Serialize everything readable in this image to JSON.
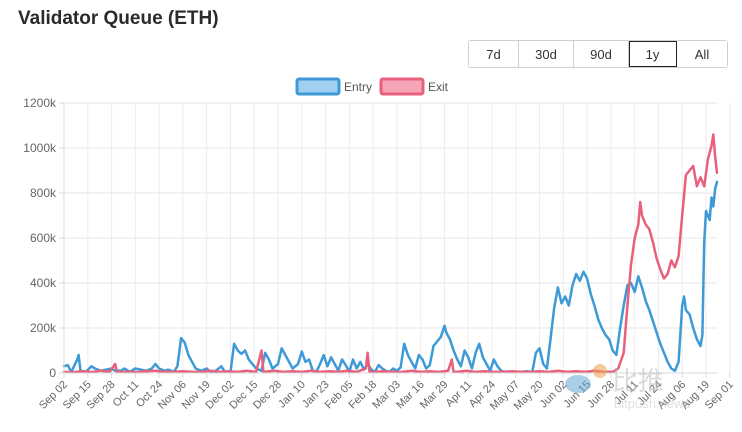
{
  "page": {
    "title": "Validator Queue (ETH)"
  },
  "ranges": [
    {
      "label": "7d",
      "active": false
    },
    {
      "label": "30d",
      "active": false
    },
    {
      "label": "90d",
      "active": false
    },
    {
      "label": "1y",
      "active": true
    },
    {
      "label": "All",
      "active": false
    }
  ],
  "watermark": {
    "text": "比推",
    "subtext": "bitpush.news"
  },
  "chart_data": {
    "type": "line",
    "title": "Validator Queue (ETH)",
    "legend_position": "top-center",
    "grid": true,
    "ylim": [
      0,
      1200000
    ],
    "y_ticks": [
      0,
      200000,
      400000,
      600000,
      800000,
      1000000,
      1200000
    ],
    "y_tick_labels": [
      "0",
      "200k",
      "400k",
      "600k",
      "800k",
      "1000k",
      "1200k"
    ],
    "x_tick_labels": [
      "Sep 02",
      "Sep 15",
      "Sep 28",
      "Oct 11",
      "Oct 24",
      "Nov 06",
      "Nov 19",
      "Dec 02",
      "Dec 15",
      "Dec 28",
      "Jan 10",
      "Jan 23",
      "Feb 05",
      "Feb 18",
      "Mar 03",
      "Mar 16",
      "Mar 29",
      "Apr 11",
      "Apr 24",
      "May 07",
      "May 20",
      "Jun 02",
      "Jun 15",
      "Jun 28",
      "Jul 11",
      "Jul 24",
      "Aug 06",
      "Aug 19",
      "Sep 01"
    ],
    "series": [
      {
        "name": "Entry",
        "color": "#3d9ad6",
        "fill": "#9fd0f2",
        "points": [
          [
            0,
            30000
          ],
          [
            2,
            35000
          ],
          [
            4,
            5000
          ],
          [
            7,
            55000
          ],
          [
            8,
            80000
          ],
          [
            9,
            10000
          ],
          [
            12,
            5000
          ],
          [
            15,
            30000
          ],
          [
            17,
            20000
          ],
          [
            20,
            10000
          ],
          [
            23,
            15000
          ],
          [
            26,
            20000
          ],
          [
            28,
            10000
          ],
          [
            31,
            10000
          ],
          [
            33,
            20000
          ],
          [
            36,
            5000
          ],
          [
            39,
            20000
          ],
          [
            42,
            15000
          ],
          [
            45,
            10000
          ],
          [
            48,
            20000
          ],
          [
            50,
            40000
          ],
          [
            52,
            20000
          ],
          [
            55,
            10000
          ],
          [
            57,
            15000
          ],
          [
            60,
            5000
          ],
          [
            62,
            30000
          ],
          [
            64,
            155000
          ],
          [
            66,
            135000
          ],
          [
            68,
            80000
          ],
          [
            70,
            50000
          ],
          [
            72,
            20000
          ],
          [
            75,
            10000
          ],
          [
            78,
            20000
          ],
          [
            80,
            5000
          ],
          [
            83,
            10000
          ],
          [
            86,
            30000
          ],
          [
            88,
            5000
          ],
          [
            91,
            5000
          ],
          [
            93,
            130000
          ],
          [
            95,
            100000
          ],
          [
            97,
            85000
          ],
          [
            99,
            100000
          ],
          [
            101,
            60000
          ],
          [
            103,
            40000
          ],
          [
            105,
            20000
          ],
          [
            108,
            10000
          ],
          [
            110,
            90000
          ],
          [
            112,
            60000
          ],
          [
            114,
            20000
          ],
          [
            117,
            40000
          ],
          [
            119,
            110000
          ],
          [
            121,
            80000
          ],
          [
            123,
            50000
          ],
          [
            125,
            20000
          ],
          [
            128,
            40000
          ],
          [
            130,
            95000
          ],
          [
            132,
            50000
          ],
          [
            134,
            60000
          ],
          [
            136,
            10000
          ],
          [
            138,
            5000
          ],
          [
            140,
            40000
          ],
          [
            142,
            80000
          ],
          [
            144,
            30000
          ],
          [
            146,
            70000
          ],
          [
            148,
            40000
          ],
          [
            150,
            10000
          ],
          [
            152,
            60000
          ],
          [
            154,
            35000
          ],
          [
            156,
            5000
          ],
          [
            158,
            60000
          ],
          [
            160,
            20000
          ],
          [
            162,
            50000
          ],
          [
            164,
            15000
          ],
          [
            166,
            40000
          ],
          [
            168,
            15000
          ],
          [
            170,
            5000
          ],
          [
            172,
            35000
          ],
          [
            174,
            20000
          ],
          [
            176,
            10000
          ],
          [
            178,
            5000
          ],
          [
            180,
            20000
          ],
          [
            182,
            10000
          ],
          [
            184,
            25000
          ],
          [
            186,
            130000
          ],
          [
            188,
            80000
          ],
          [
            190,
            50000
          ],
          [
            192,
            20000
          ],
          [
            194,
            80000
          ],
          [
            196,
            60000
          ],
          [
            198,
            20000
          ],
          [
            200,
            35000
          ],
          [
            202,
            120000
          ],
          [
            204,
            140000
          ],
          [
            206,
            160000
          ],
          [
            208,
            210000
          ],
          [
            209,
            180000
          ],
          [
            211,
            150000
          ],
          [
            213,
            100000
          ],
          [
            215,
            60000
          ],
          [
            217,
            30000
          ],
          [
            219,
            100000
          ],
          [
            221,
            70000
          ],
          [
            223,
            20000
          ],
          [
            225,
            90000
          ],
          [
            227,
            130000
          ],
          [
            229,
            70000
          ],
          [
            231,
            40000
          ],
          [
            233,
            10000
          ],
          [
            235,
            60000
          ],
          [
            237,
            30000
          ],
          [
            239,
            10000
          ],
          [
            241,
            5000
          ],
          [
            244,
            5000
          ],
          [
            247,
            5000
          ],
          [
            250,
            5000
          ],
          [
            253,
            8000
          ],
          [
            256,
            5000
          ],
          [
            258,
            90000
          ],
          [
            260,
            110000
          ],
          [
            262,
            40000
          ],
          [
            264,
            20000
          ],
          [
            266,
            150000
          ],
          [
            268,
            290000
          ],
          [
            270,
            380000
          ],
          [
            272,
            310000
          ],
          [
            274,
            340000
          ],
          [
            276,
            300000
          ],
          [
            278,
            390000
          ],
          [
            280,
            440000
          ],
          [
            282,
            410000
          ],
          [
            284,
            450000
          ],
          [
            286,
            420000
          ],
          [
            288,
            350000
          ],
          [
            290,
            300000
          ],
          [
            292,
            240000
          ],
          [
            294,
            200000
          ],
          [
            296,
            170000
          ],
          [
            298,
            150000
          ],
          [
            300,
            100000
          ],
          [
            302,
            80000
          ],
          [
            304,
            200000
          ],
          [
            306,
            300000
          ],
          [
            308,
            390000
          ],
          [
            310,
            400000
          ],
          [
            312,
            360000
          ],
          [
            314,
            430000
          ],
          [
            316,
            380000
          ],
          [
            318,
            320000
          ],
          [
            320,
            280000
          ],
          [
            322,
            230000
          ],
          [
            324,
            180000
          ],
          [
            326,
            130000
          ],
          [
            328,
            90000
          ],
          [
            330,
            50000
          ],
          [
            332,
            20000
          ],
          [
            334,
            10000
          ],
          [
            336,
            50000
          ],
          [
            338,
            300000
          ],
          [
            339,
            340000
          ],
          [
            340,
            280000
          ],
          [
            342,
            260000
          ],
          [
            344,
            200000
          ],
          [
            346,
            150000
          ],
          [
            348,
            120000
          ],
          [
            349,
            170000
          ],
          [
            350,
            580000
          ],
          [
            351,
            720000
          ],
          [
            352,
            700000
          ],
          [
            353,
            680000
          ],
          [
            354,
            780000
          ],
          [
            355,
            740000
          ],
          [
            356,
            820000
          ],
          [
            357,
            850000
          ]
        ]
      },
      {
        "name": "Exit",
        "color": "#e8607c",
        "fill": "#f6a6b7",
        "points": [
          [
            0,
            5000
          ],
          [
            5,
            3000
          ],
          [
            10,
            8000
          ],
          [
            15,
            4000
          ],
          [
            20,
            10000
          ],
          [
            25,
            5000
          ],
          [
            28,
            40000
          ],
          [
            29,
            5000
          ],
          [
            35,
            5000
          ],
          [
            40,
            4000
          ],
          [
            45,
            8000
          ],
          [
            50,
            10000
          ],
          [
            55,
            5000
          ],
          [
            60,
            5000
          ],
          [
            65,
            8000
          ],
          [
            70,
            5000
          ],
          [
            75,
            5000
          ],
          [
            80,
            10000
          ],
          [
            85,
            5000
          ],
          [
            90,
            8000
          ],
          [
            95,
            5000
          ],
          [
            100,
            10000
          ],
          [
            105,
            5000
          ],
          [
            108,
            100000
          ],
          [
            109,
            5000
          ],
          [
            115,
            10000
          ],
          [
            120,
            5000
          ],
          [
            125,
            8000
          ],
          [
            130,
            5000
          ],
          [
            135,
            10000
          ],
          [
            140,
            5000
          ],
          [
            145,
            8000
          ],
          [
            150,
            5000
          ],
          [
            155,
            10000
          ],
          [
            160,
            5000
          ],
          [
            165,
            20000
          ],
          [
            166,
            90000
          ],
          [
            167,
            5000
          ],
          [
            170,
            5000
          ],
          [
            175,
            8000
          ],
          [
            180,
            5000
          ],
          [
            185,
            5000
          ],
          [
            190,
            10000
          ],
          [
            195,
            5000
          ],
          [
            200,
            8000
          ],
          [
            205,
            5000
          ],
          [
            210,
            10000
          ],
          [
            212,
            60000
          ],
          [
            213,
            5000
          ],
          [
            215,
            5000
          ],
          [
            220,
            10000
          ],
          [
            225,
            5000
          ],
          [
            230,
            8000
          ],
          [
            235,
            5000
          ],
          [
            240,
            5000
          ],
          [
            245,
            8000
          ],
          [
            250,
            5000
          ],
          [
            255,
            5000
          ],
          [
            260,
            8000
          ],
          [
            265,
            5000
          ],
          [
            270,
            10000
          ],
          [
            275,
            5000
          ],
          [
            280,
            8000
          ],
          [
            285,
            5000
          ],
          [
            290,
            10000
          ],
          [
            295,
            5000
          ],
          [
            300,
            5000
          ],
          [
            303,
            20000
          ],
          [
            306,
            90000
          ],
          [
            308,
            300000
          ],
          [
            310,
            480000
          ],
          [
            312,
            600000
          ],
          [
            314,
            660000
          ],
          [
            315,
            760000
          ],
          [
            316,
            700000
          ],
          [
            318,
            660000
          ],
          [
            320,
            640000
          ],
          [
            322,
            580000
          ],
          [
            324,
            510000
          ],
          [
            326,
            460000
          ],
          [
            328,
            420000
          ],
          [
            330,
            440000
          ],
          [
            332,
            500000
          ],
          [
            334,
            470000
          ],
          [
            336,
            520000
          ],
          [
            338,
            700000
          ],
          [
            340,
            880000
          ],
          [
            342,
            900000
          ],
          [
            344,
            920000
          ],
          [
            346,
            830000
          ],
          [
            348,
            870000
          ],
          [
            350,
            830000
          ],
          [
            352,
            950000
          ],
          [
            354,
            1010000
          ],
          [
            355,
            1060000
          ],
          [
            356,
            960000
          ],
          [
            357,
            890000
          ]
        ]
      }
    ]
  }
}
